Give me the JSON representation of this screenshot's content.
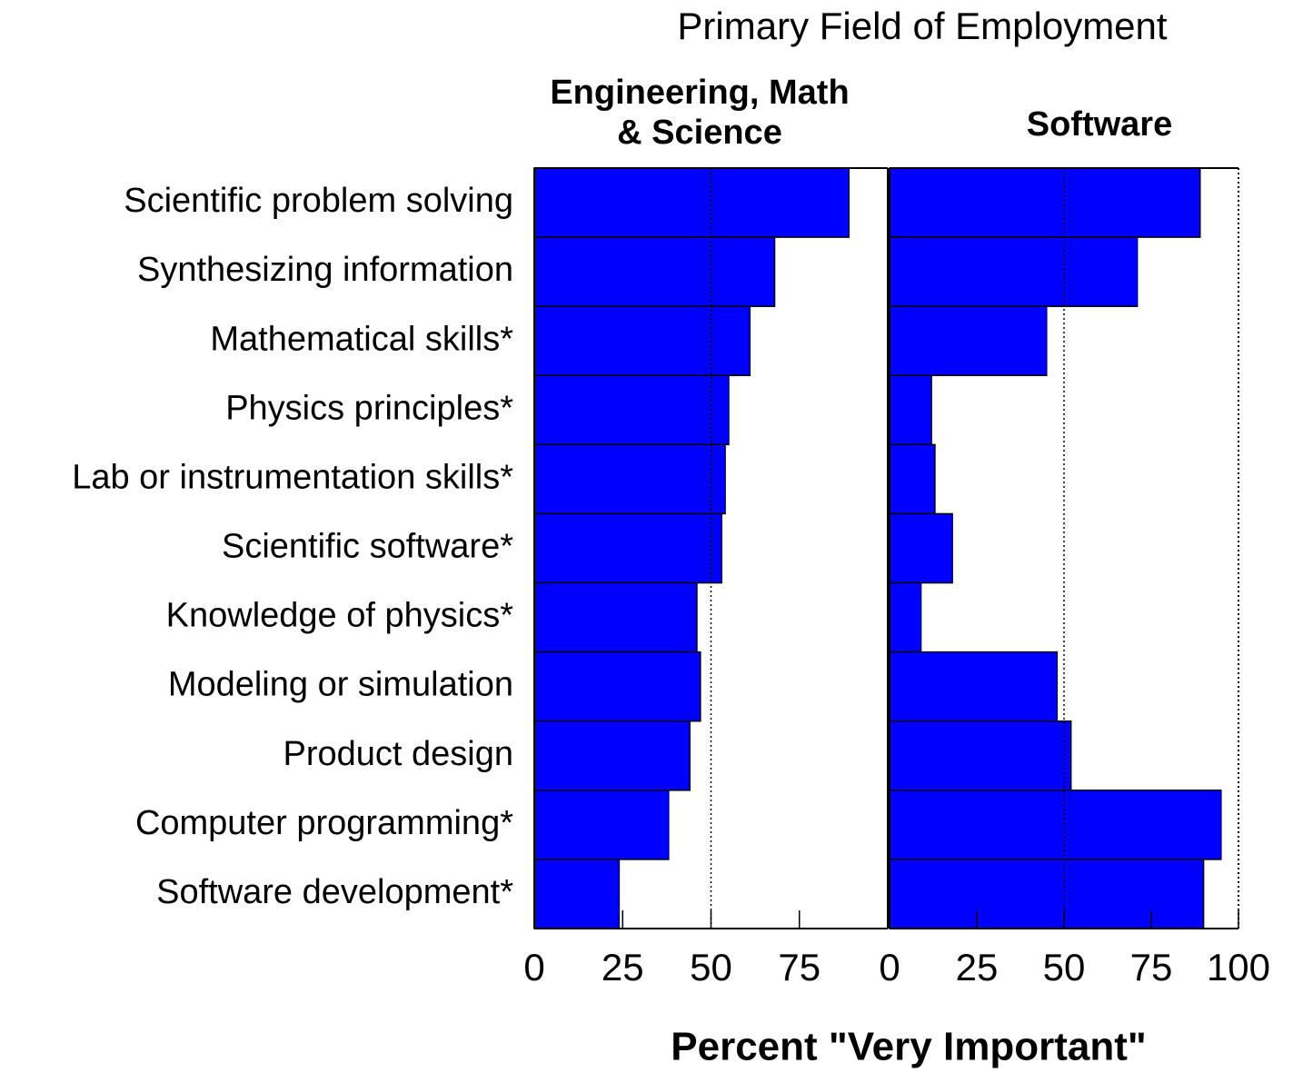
{
  "chart_data": {
    "type": "bar",
    "orientation": "horizontal",
    "title": "Primary Field of Employment",
    "xlabel": "Percent \"Very Important\"",
    "categories": [
      "Scientific problem solving",
      "Synthesizing information",
      "Mathematical skills*",
      "Physics principles*",
      "Lab or instrumentation skills*",
      "Scientific software*",
      "Knowledge of physics*",
      "Modeling or simulation",
      "Product design",
      "Computer programming*",
      "Software development*"
    ],
    "series": [
      {
        "name": "Engineering, Math & Science",
        "color": "#0000ff",
        "values": [
          89,
          68,
          61,
          55,
          54,
          53,
          46,
          47,
          44,
          38,
          24
        ],
        "xlim": [
          0,
          100
        ],
        "xticks": [
          0,
          25,
          50,
          75
        ],
        "reference_line": 50
      },
      {
        "name": "Software",
        "color": "#0000ff",
        "values": [
          89,
          71,
          45,
          12,
          13,
          18,
          9,
          48,
          52,
          95,
          90
        ],
        "xlim": [
          0,
          100
        ],
        "xticks": [
          0,
          25,
          50,
          75,
          100
        ],
        "reference_line": 50
      }
    ]
  }
}
